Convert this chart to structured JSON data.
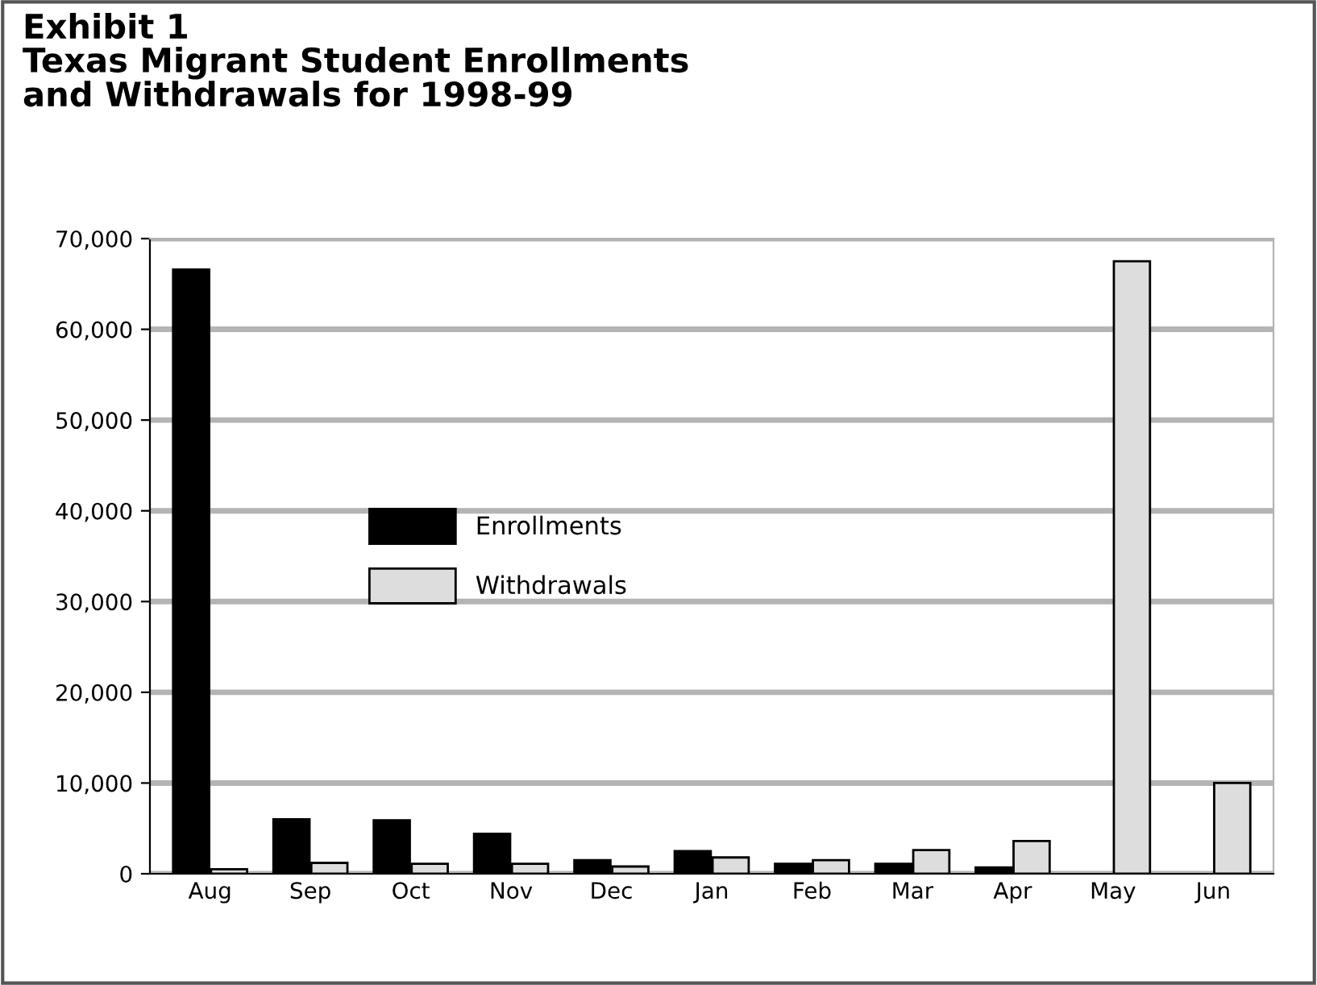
{
  "chart_data": {
    "type": "bar",
    "title": "Exhibit 1\nTexas Migrant Student Enrollments\nand Withdrawals for 1998-99",
    "categories": [
      "Aug",
      "Sep",
      "Oct",
      "Nov",
      "Dec",
      "Jan",
      "Feb",
      "Mar",
      "Apr",
      "May",
      "Jun"
    ],
    "series": [
      {
        "name": "Enrollments",
        "color": "#000000",
        "values": [
          66600,
          6000,
          5900,
          4400,
          1500,
          2500,
          1100,
          1100,
          700,
          null,
          null
        ]
      },
      {
        "name": "Withdrawals",
        "color": "#dddddd",
        "values": [
          500,
          1200,
          1100,
          1100,
          800,
          1800,
          1500,
          2600,
          3600,
          67500,
          10000
        ]
      }
    ],
    "ylim": [
      0,
      70000
    ],
    "yticks": [
      {
        "value": 0,
        "label": "0"
      },
      {
        "value": 10000,
        "label": "10,000"
      },
      {
        "value": 20000,
        "label": "20,000"
      },
      {
        "value": 30000,
        "label": "30,000"
      },
      {
        "value": 40000,
        "label": "40,000"
      },
      {
        "value": 50000,
        "label": "50,000"
      },
      {
        "value": 60000,
        "label": "60,000"
      },
      {
        "value": 70000,
        "label": "70,000"
      }
    ],
    "grid": "y",
    "legend": "center"
  }
}
